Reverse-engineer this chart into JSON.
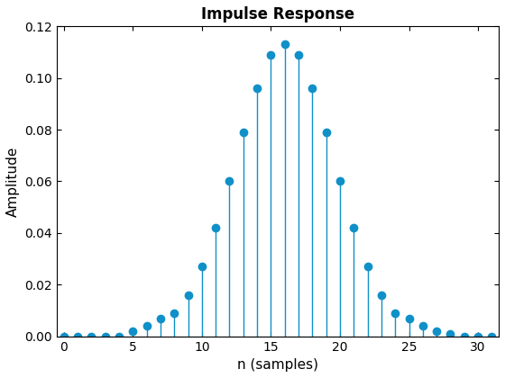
{
  "title": "Impulse Response",
  "xlabel": "n (samples)",
  "ylabel": "Amplitude",
  "values": [
    0.0,
    0.0,
    0.0,
    0.0,
    0.0,
    0.002,
    0.004,
    0.007,
    0.009,
    0.016,
    0.027,
    0.042,
    0.06,
    0.079,
    0.096,
    0.109,
    0.113,
    0.109,
    0.096,
    0.079,
    0.06,
    0.042,
    0.027,
    0.016,
    0.009,
    0.007,
    0.004,
    0.002,
    0.001,
    0.0,
    0.0,
    0.0
  ],
  "n_values": [
    0,
    1,
    2,
    3,
    4,
    5,
    6,
    7,
    8,
    9,
    10,
    11,
    12,
    13,
    14,
    15,
    16,
    17,
    18,
    19,
    20,
    21,
    22,
    23,
    24,
    25,
    26,
    27,
    28,
    29,
    30,
    31
  ],
  "stem_color": "#1090C8",
  "ylim": [
    0,
    0.12
  ],
  "xlim": [
    -0.5,
    31.5
  ],
  "xticks": [
    0,
    5,
    10,
    15,
    20,
    25,
    30
  ],
  "yticks": [
    0,
    0.02,
    0.04,
    0.06,
    0.08,
    0.1,
    0.12
  ],
  "title_fontsize": 12,
  "label_fontsize": 11,
  "figsize": [
    5.6,
    4.2
  ],
  "dpi": 100
}
